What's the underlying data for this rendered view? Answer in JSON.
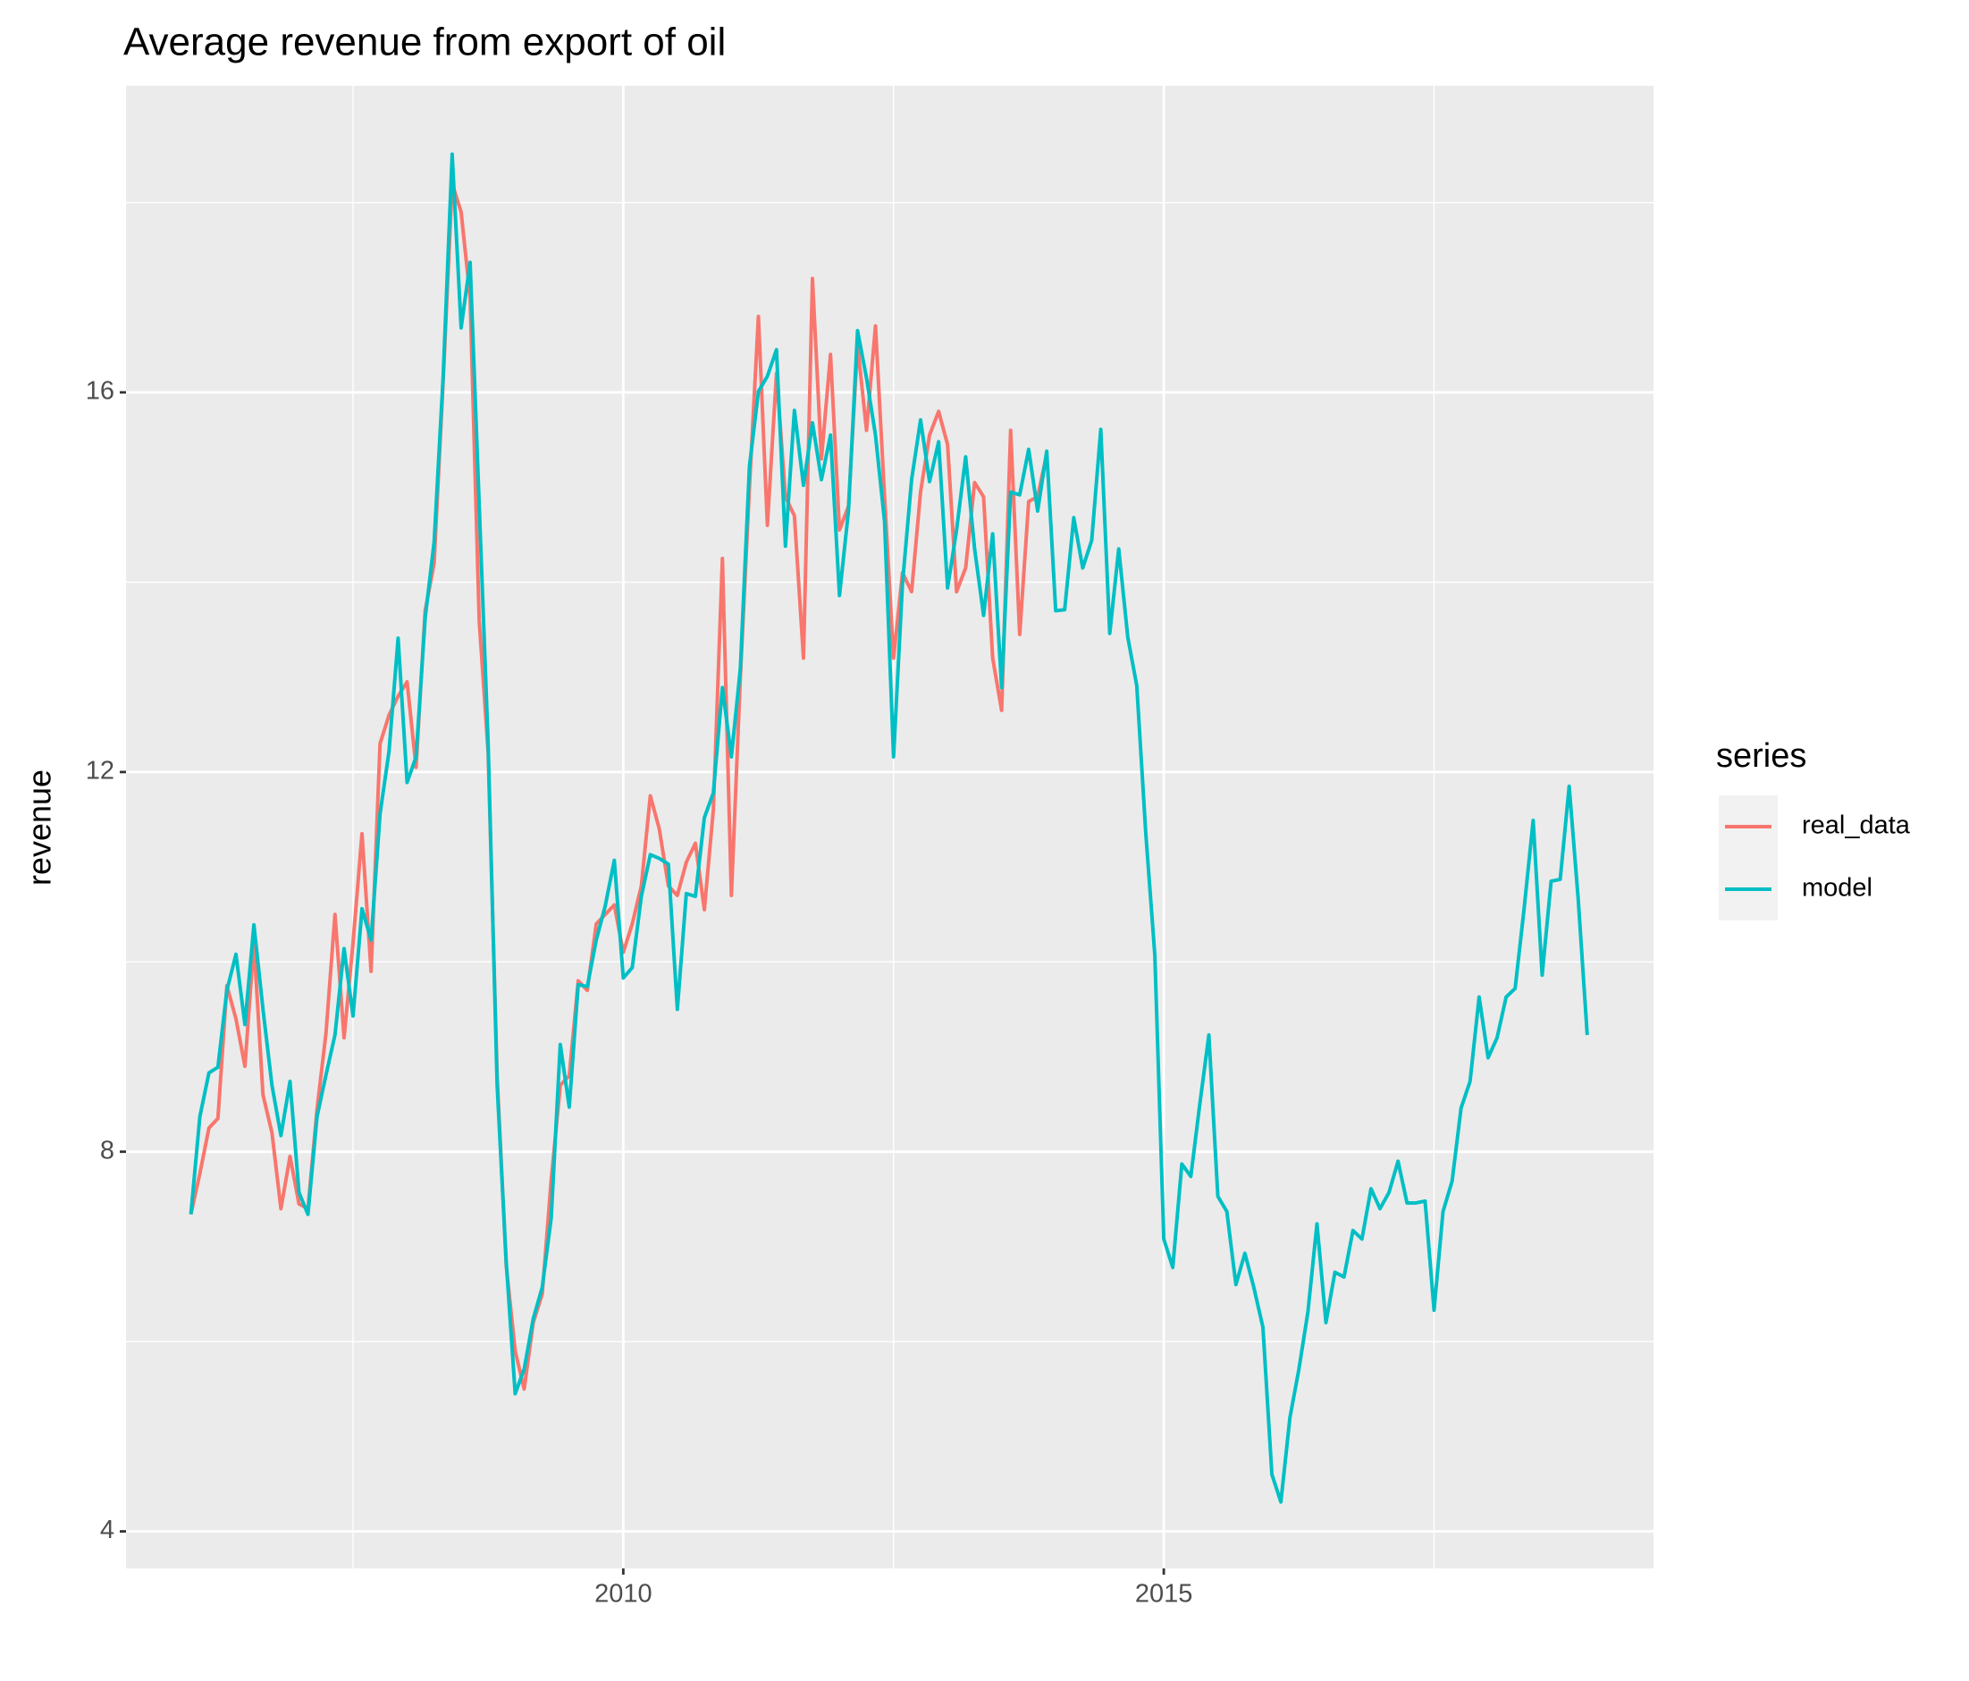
{
  "chart_data": {
    "type": "line",
    "title": "Average revenue from export of oil",
    "y_label": "revenue",
    "x": [
      2006,
      2006.083,
      2006.167,
      2006.25,
      2006.333,
      2006.417,
      2006.5,
      2006.583,
      2006.667,
      2006.75,
      2006.833,
      2006.917,
      2007,
      2007.083,
      2007.167,
      2007.25,
      2007.333,
      2007.417,
      2007.5,
      2007.583,
      2007.667,
      2007.75,
      2007.833,
      2007.917,
      2008,
      2008.083,
      2008.167,
      2008.25,
      2008.333,
      2008.417,
      2008.5,
      2008.583,
      2008.667,
      2008.75,
      2008.833,
      2008.917,
      2009,
      2009.083,
      2009.167,
      2009.25,
      2009.333,
      2009.417,
      2009.5,
      2009.583,
      2009.667,
      2009.75,
      2009.833,
      2009.917,
      2010,
      2010.083,
      2010.167,
      2010.25,
      2010.333,
      2010.417,
      2010.5,
      2010.583,
      2010.667,
      2010.75,
      2010.833,
      2010.917,
      2011,
      2011.083,
      2011.167,
      2011.25,
      2011.333,
      2011.417,
      2011.5,
      2011.583,
      2011.667,
      2011.75,
      2011.833,
      2011.917,
      2012,
      2012.083,
      2012.167,
      2012.25,
      2012.333,
      2012.417,
      2012.5,
      2012.583,
      2012.667,
      2012.75,
      2012.833,
      2012.917,
      2013,
      2013.083,
      2013.167,
      2013.25,
      2013.333,
      2013.417,
      2013.5,
      2013.583,
      2013.667,
      2013.75,
      2013.833,
      2013.917,
      2014,
      2014.083,
      2014.167,
      2014.25,
      2014.333,
      2014.417,
      2014.5,
      2014.583,
      2014.667,
      2014.75,
      2014.833,
      2014.917,
      2015,
      2015.083,
      2015.167,
      2015.25,
      2015.333,
      2015.417,
      2015.5,
      2015.583,
      2015.667,
      2015.75,
      2015.833,
      2015.917,
      2016,
      2016.083,
      2016.167,
      2016.25,
      2016.333,
      2016.417,
      2016.5,
      2016.583,
      2016.667,
      2016.75,
      2016.833,
      2016.917,
      2017,
      2017.083,
      2017.167,
      2017.25,
      2017.333,
      2017.417,
      2017.5,
      2017.583,
      2017.667,
      2017.75,
      2017.833,
      2017.917,
      2018,
      2018.083,
      2018.167,
      2018.25,
      2018.333,
      2018.417,
      2018.5,
      2018.583,
      2018.667,
      2018.75,
      2018.833,
      2018.917
    ],
    "series": [
      {
        "name": "real_data",
        "color": "#F8766D",
        "values": [
          7.34,
          7.77,
          8.25,
          8.35,
          9.75,
          9.4,
          8.9,
          10.2,
          8.6,
          8.2,
          7.4,
          7.95,
          7.45,
          7.4,
          8.45,
          9.25,
          10.5,
          9.2,
          10.2,
          11.35,
          9.9,
          12.3,
          12.6,
          12.8,
          12.95,
          12.05,
          13.7,
          14.2,
          16.1,
          18.2,
          17.9,
          17.0,
          13.6,
          12.2,
          8.8,
          6.8,
          5.9,
          5.5,
          6.2,
          6.5,
          7.7,
          8.7,
          8.8,
          9.8,
          9.7,
          10.4,
          10.5,
          10.6,
          10.1,
          10.4,
          10.8,
          11.75,
          11.4,
          10.8,
          10.7,
          11.05,
          11.25,
          10.55,
          11.6,
          14.25,
          10.7,
          13.0,
          15.0,
          16.8,
          14.6,
          16.2,
          14.9,
          14.7,
          13.2,
          17.2,
          15.3,
          16.4,
          14.55,
          14.8,
          16.5,
          15.6,
          16.7,
          14.9,
          13.2,
          14.1,
          13.9,
          14.95,
          15.55,
          15.8,
          15.45,
          13.9,
          14.15,
          15.05,
          14.9,
          13.2,
          12.65,
          15.6,
          13.45,
          14.85,
          14.9,
          15.35,
          null,
          null,
          null,
          null,
          null,
          null,
          null,
          null,
          null,
          null,
          null,
          null,
          null,
          null,
          null,
          null,
          null,
          null,
          null,
          null,
          null,
          null,
          null,
          null,
          null,
          null,
          null,
          null,
          null,
          null,
          null,
          null,
          null,
          null,
          null,
          null,
          null,
          null,
          null,
          null,
          null,
          null,
          null,
          null,
          null,
          null,
          null,
          null,
          null,
          null,
          null,
          null,
          null,
          null,
          null,
          null,
          null,
          null,
          null,
          null
        ]
      },
      {
        "name": "model",
        "color": "#00BFC4",
        "values": [
          7.34,
          8.37,
          8.83,
          8.89,
          9.7,
          10.08,
          9.34,
          10.39,
          9.5,
          8.7,
          8.17,
          8.74,
          7.57,
          7.34,
          8.37,
          8.81,
          9.23,
          10.14,
          9.43,
          10.56,
          10.23,
          11.56,
          12.22,
          13.41,
          11.89,
          12.16,
          13.62,
          14.42,
          16.15,
          18.51,
          16.68,
          17.37,
          14.82,
          12.29,
          8.7,
          6.84,
          5.45,
          5.71,
          6.24,
          6.57,
          7.3,
          9.13,
          8.47,
          9.76,
          9.74,
          10.23,
          10.59,
          11.07,
          9.83,
          9.94,
          10.69,
          11.13,
          11.09,
          11.03,
          9.5,
          10.72,
          10.69,
          11.52,
          11.78,
          12.89,
          12.16,
          13.09,
          15.22,
          16.01,
          16.17,
          16.45,
          14.38,
          15.81,
          15.02,
          15.68,
          15.08,
          15.55,
          13.86,
          14.75,
          16.65,
          16.15,
          15.55,
          14.64,
          12.16,
          13.99,
          15.08,
          15.71,
          15.06,
          15.48,
          13.94,
          14.55,
          15.32,
          14.35,
          13.65,
          14.51,
          12.89,
          14.95,
          14.92,
          15.4,
          14.75,
          15.38,
          13.7,
          13.71,
          14.68,
          14.15,
          14.44,
          15.61,
          13.46,
          14.35,
          13.42,
          12.91,
          11.36,
          10.07,
          7.08,
          6.78,
          7.87,
          7.74,
          8.5,
          9.23,
          7.53,
          7.37,
          6.6,
          6.93,
          6.57,
          6.15,
          4.6,
          4.31,
          5.2,
          5.71,
          6.31,
          7.24,
          6.2,
          6.73,
          6.68,
          7.17,
          7.08,
          7.61,
          7.4,
          7.57,
          7.9,
          7.46,
          7.46,
          7.48,
          6.33,
          7.37,
          7.69,
          8.46,
          8.74,
          9.63,
          8.99,
          9.2,
          9.63,
          9.72,
          10.56,
          11.49,
          9.86,
          10.85,
          10.87,
          11.85,
          10.67,
          9.23
        ]
      }
    ],
    "legend_title": "series",
    "legend": "right",
    "xlim": [
      2005.4,
      2019.53
    ],
    "xticks": [
      2010,
      2015
    ],
    "xminor": [
      2007.5,
      2012.5,
      2017.5
    ],
    "ylim": [
      3.61,
      19.23
    ],
    "yticks": [
      4,
      8,
      12,
      16
    ],
    "yminor": [
      6,
      10,
      14,
      18
    ],
    "grid": true
  }
}
